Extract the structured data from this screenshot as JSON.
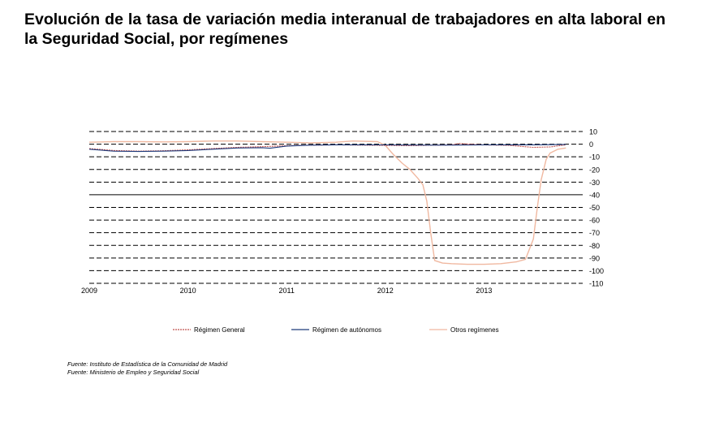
{
  "title": "Evolución de la tasa de variación media interanual de trabajadores en alta laboral en la Seguridad Social, por  regímenes",
  "sources": [
    "Fuente: Instituto de Estadística de la Comunidad de Madrid",
    "Fuente: Ministerio de Empleo y Seguridad Social"
  ],
  "chart_data": {
    "type": "line",
    "title": "",
    "xlabel": "",
    "ylabel": "",
    "xlim": [
      2009,
      2014
    ],
    "ylim": [
      -110,
      10
    ],
    "y_ticks": [
      10,
      0,
      -10,
      -20,
      -30,
      -40,
      -50,
      -60,
      -70,
      -80,
      -90,
      -100,
      -110
    ],
    "x_ticks": [
      "2009",
      "2010",
      "2011",
      "2012",
      "2013"
    ],
    "grid": "horizontal dashed",
    "legend_position": "bottom",
    "series": [
      {
        "name": "Régimen General",
        "color": "#c0504d",
        "style": "dashed",
        "points": [
          [
            2009.0,
            -3.5
          ],
          [
            2009.25,
            -5
          ],
          [
            2009.5,
            -5.5
          ],
          [
            2009.75,
            -5.2
          ],
          [
            2010.0,
            -4.5
          ],
          [
            2010.25,
            -3.5
          ],
          [
            2010.5,
            -2.5
          ],
          [
            2010.75,
            -2
          ],
          [
            2011.0,
            -1.2
          ],
          [
            2011.25,
            -0.8
          ],
          [
            2011.5,
            -0.5
          ],
          [
            2011.75,
            -0.8
          ],
          [
            2012.0,
            -1
          ],
          [
            2012.25,
            -1.2
          ],
          [
            2012.5,
            -0.8
          ],
          [
            2012.67,
            -0.5
          ],
          [
            2012.75,
            0.5
          ],
          [
            2012.92,
            -0.3
          ],
          [
            2013.0,
            -0.6
          ],
          [
            2013.25,
            -1
          ],
          [
            2013.5,
            -2.5
          ],
          [
            2013.67,
            -2.2
          ],
          [
            2013.83,
            -0.5
          ]
        ]
      },
      {
        "name": "Régimen de autónomos",
        "color": "#1f3a7a",
        "style": "solid",
        "points": [
          [
            2009.0,
            -4
          ],
          [
            2009.25,
            -5.5
          ],
          [
            2009.5,
            -5.8
          ],
          [
            2009.75,
            -5.5
          ],
          [
            2010.0,
            -5
          ],
          [
            2010.25,
            -4
          ],
          [
            2010.5,
            -3
          ],
          [
            2010.75,
            -2.8
          ],
          [
            2010.83,
            -3.2
          ],
          [
            2011.0,
            -1.5
          ],
          [
            2011.25,
            -0.8
          ],
          [
            2011.5,
            -0.5
          ],
          [
            2011.75,
            -0.5
          ],
          [
            2012.0,
            -0.6
          ],
          [
            2012.25,
            -0.7
          ],
          [
            2012.5,
            -0.8
          ],
          [
            2012.75,
            -0.7
          ],
          [
            2013.0,
            -0.6
          ],
          [
            2013.25,
            -0.5
          ],
          [
            2013.5,
            -0.5
          ],
          [
            2013.75,
            -0.3
          ],
          [
            2013.83,
            -0.2
          ]
        ]
      },
      {
        "name": "Otros regímenes",
        "color": "#f0b8a0",
        "style": "solid",
        "points": [
          [
            2009.0,
            1.5
          ],
          [
            2009.25,
            2
          ],
          [
            2009.5,
            2
          ],
          [
            2009.75,
            1.8
          ],
          [
            2010.0,
            2
          ],
          [
            2010.25,
            2.5
          ],
          [
            2010.5,
            2.5
          ],
          [
            2010.75,
            2
          ],
          [
            2011.0,
            1.5
          ],
          [
            2011.25,
            1
          ],
          [
            2011.5,
            1.5
          ],
          [
            2011.67,
            2.5
          ],
          [
            2011.92,
            2
          ],
          [
            2012.0,
            -1
          ],
          [
            2012.08,
            -8
          ],
          [
            2012.17,
            -15
          ],
          [
            2012.25,
            -20
          ],
          [
            2012.33,
            -27
          ],
          [
            2012.38,
            -32
          ],
          [
            2012.42,
            -45
          ],
          [
            2012.46,
            -70
          ],
          [
            2012.5,
            -92
          ],
          [
            2012.58,
            -94
          ],
          [
            2012.67,
            -94.5
          ],
          [
            2012.83,
            -95
          ],
          [
            2013.0,
            -95
          ],
          [
            2013.17,
            -94.5
          ],
          [
            2013.33,
            -93
          ],
          [
            2013.42,
            -91
          ],
          [
            2013.5,
            -75
          ],
          [
            2013.54,
            -50
          ],
          [
            2013.58,
            -28
          ],
          [
            2013.63,
            -12
          ],
          [
            2013.67,
            -7
          ],
          [
            2013.75,
            -4
          ],
          [
            2013.83,
            -3
          ]
        ]
      }
    ]
  }
}
